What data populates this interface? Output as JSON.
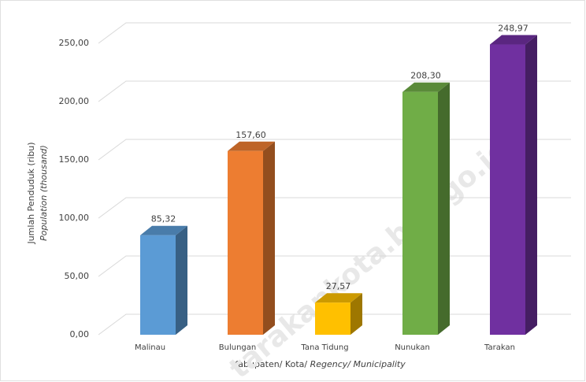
{
  "chart_data": {
    "type": "bar3d",
    "y_label": "Jumlah Penduduk (ribu)",
    "y_label_italic": "Population (thousand)",
    "x_label": "Kabupaten/ Kota/",
    "x_label_italic": "Regency/ Municipality",
    "watermark": "tarakankota.bps.go.id",
    "categories": [
      "Malinau",
      "Bulungan",
      "Tana Tidung",
      "Nunukan",
      "Tarakan"
    ],
    "values": [
      85.32,
      157.6,
      27.57,
      208.3,
      248.97
    ],
    "value_labels": [
      "85,32",
      "157,60",
      "27,57",
      "208,30",
      "248,97"
    ],
    "colors": [
      "#5b9bd5",
      "#ed7d31",
      "#ffc000",
      "#70ad47",
      "#7030a0"
    ],
    "ylim": [
      0,
      250
    ],
    "yticks": [
      {
        "value": 0,
        "label": "0,00"
      },
      {
        "value": 50,
        "label": "50,00"
      },
      {
        "value": 100,
        "label": "100,00"
      },
      {
        "value": 150,
        "label": "150,00"
      },
      {
        "value": 200,
        "label": "200,00"
      },
      {
        "value": 250,
        "label": "250,00"
      }
    ],
    "grid": true
  }
}
